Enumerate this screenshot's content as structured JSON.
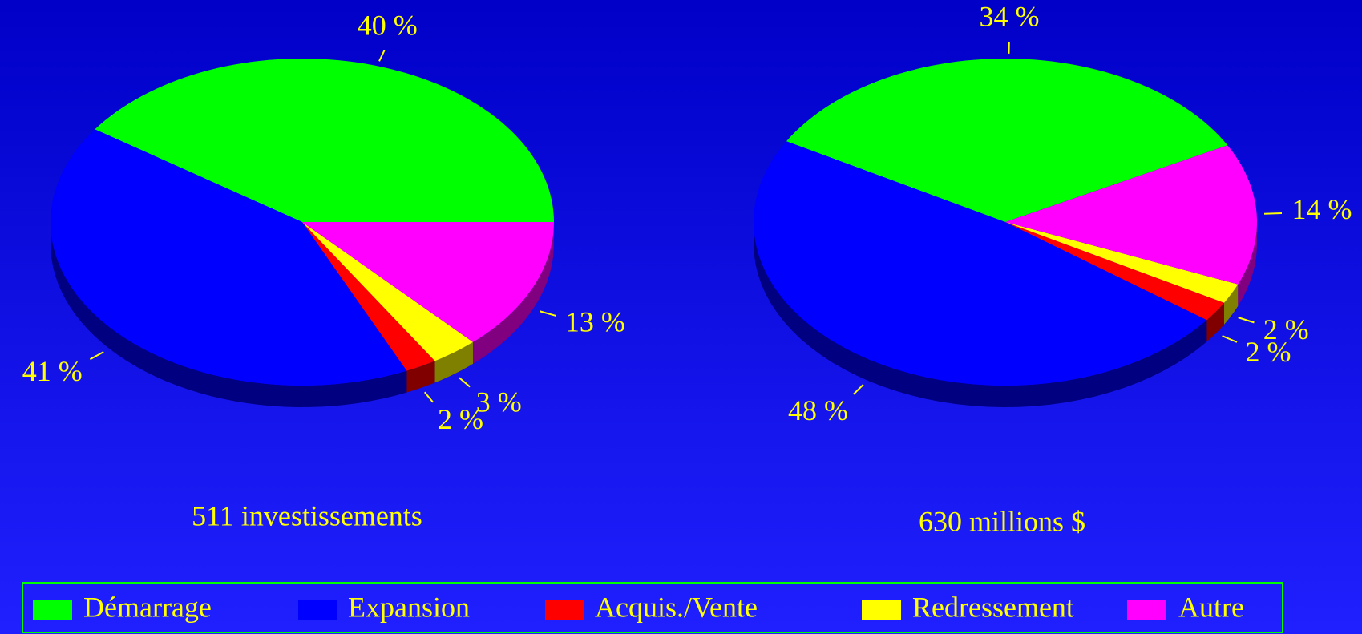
{
  "chart_data": [
    {
      "type": "pie",
      "title": "511 investissements",
      "categories": [
        "Démarrage",
        "Expansion",
        "Acquis./Vente",
        "Redressement",
        "Autre"
      ],
      "values": [
        40,
        41,
        2,
        3,
        13
      ],
      "value_labels": [
        "40 %",
        "41 %",
        "2 %",
        "3 %",
        "13 %"
      ],
      "colors": [
        "#00ff00",
        "#0000ff",
        "#ff0000",
        "#ffff00",
        "#ff00ff"
      ]
    },
    {
      "type": "pie",
      "title": "630 millions $",
      "categories": [
        "Démarrage",
        "Expansion",
        "Acquis./Vente",
        "Redressement",
        "Autre"
      ],
      "values": [
        34,
        48,
        2,
        2,
        14
      ],
      "value_labels": [
        "34 %",
        "48 %",
        "2 %",
        "2 %",
        "14 %"
      ],
      "colors": [
        "#00ff00",
        "#0000ff",
        "#ff0000",
        "#ffff00",
        "#ff00ff"
      ]
    }
  ]
}
